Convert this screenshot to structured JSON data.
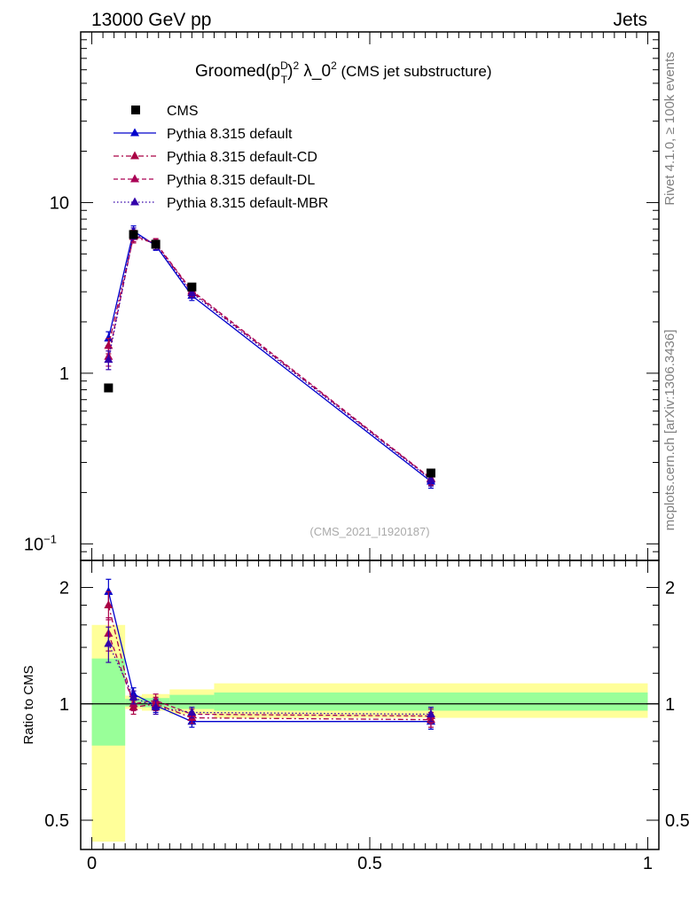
{
  "header": {
    "energy_label": "13000 GeV pp",
    "category_label": "Jets"
  },
  "title_parts": {
    "prefix": "Groomed(p",
    "sup_d": "D",
    "sub_t": "T",
    "close": ")",
    "sup_2": "2",
    "mid": " λ_0",
    "sup_2b": "2",
    "suffix": " (CMS jet substructure)"
  },
  "side_labels": {
    "rivet": "Rivet 4.1.0, ≥ 100k events",
    "mcplots": "mcplots.cern.ch [arXiv:1306.3436]"
  },
  "watermark": "(CMS_2021_I1920187)",
  "colors": {
    "cms": "#000000",
    "default": "#0000cc",
    "default_cd": "#aa0044",
    "default_dl": "#aa0055",
    "default_mbr": "#3300aa",
    "band_yellow": "#ffff99",
    "band_green": "#99ff99"
  },
  "chart_data": [
    {
      "type": "line",
      "panel": "main",
      "title": "Groomed(pT^D)^2 λ_0^2 (CMS jet substructure)",
      "xlabel": "",
      "ylabel": "",
      "yscale": "log",
      "xlim": [
        -0.02,
        1.02
      ],
      "ylim": [
        0.08,
        100
      ],
      "yticks": [
        {
          "value": 10,
          "label": "10"
        },
        {
          "value": 1,
          "label": "1"
        },
        {
          "value": 0.1,
          "label": "10",
          "sup": "−1"
        }
      ],
      "legend": [
        "CMS",
        "Pythia 8.315 default",
        "Pythia 8.315 default-CD",
        "Pythia 8.315 default-DL",
        "Pythia 8.315 default-MBR"
      ],
      "legend_position": "top-left",
      "x": [
        0.03,
        0.075,
        0.115,
        0.18,
        0.61
      ],
      "cms": [
        0.82,
        6.5,
        5.7,
        3.2,
        0.26
      ],
      "series": [
        {
          "name": "Pythia 8.315 default",
          "style": "solid",
          "values": [
            1.6,
            6.8,
            5.6,
            2.85,
            0.232
          ],
          "errors": [
            0.15,
            0.5,
            0.35,
            0.18,
            0.02
          ]
        },
        {
          "name": "Pythia 8.315 default-CD",
          "style": "dashdot",
          "values": [
            1.45,
            6.3,
            5.75,
            3.0,
            0.24
          ],
          "errors": [
            0.15,
            0.5,
            0.35,
            0.18,
            0.02
          ]
        },
        {
          "name": "Pythia 8.315 default-DL",
          "style": "dashed",
          "values": [
            1.25,
            6.4,
            5.8,
            3.05,
            0.242
          ],
          "errors": [
            0.15,
            0.5,
            0.35,
            0.18,
            0.02
          ]
        },
        {
          "name": "Pythia 8.315 default-MBR",
          "style": "dotted",
          "values": [
            1.2,
            6.6,
            5.65,
            2.95,
            0.238
          ],
          "errors": [
            0.15,
            0.5,
            0.35,
            0.18,
            0.02
          ]
        }
      ]
    },
    {
      "type": "line",
      "panel": "ratio",
      "xlabel": "",
      "ylabel": "Ratio to CMS",
      "yscale": "log",
      "xlim": [
        -0.02,
        1.02
      ],
      "ylim": [
        0.42,
        2.35
      ],
      "yticks": [
        {
          "value": 2,
          "label": "2"
        },
        {
          "value": 1,
          "label": "1"
        },
        {
          "value": 0.5,
          "label": "0.5"
        }
      ],
      "xticks": [
        {
          "value": 0,
          "label": "0"
        },
        {
          "value": 0.5,
          "label": "0.5"
        },
        {
          "value": 1,
          "label": "1"
        }
      ],
      "x": [
        0.03,
        0.075,
        0.115,
        0.18,
        0.61
      ],
      "bands": [
        {
          "x0": 0.0,
          "x1": 0.06,
          "yellow": [
            0.44,
            1.6
          ],
          "green": [
            0.78,
            1.31
          ]
        },
        {
          "x0": 0.06,
          "x1": 0.09,
          "yellow": [
            0.97,
            1.05
          ],
          "green": [
            0.985,
            1.03
          ]
        },
        {
          "x0": 0.09,
          "x1": 0.14,
          "yellow": [
            0.96,
            1.06
          ],
          "green": [
            0.98,
            1.035
          ]
        },
        {
          "x0": 0.14,
          "x1": 0.22,
          "yellow": [
            0.94,
            1.09
          ],
          "green": [
            0.97,
            1.055
          ]
        },
        {
          "x0": 0.22,
          "x1": 1.0,
          "yellow": [
            0.92,
            1.13
          ],
          "green": [
            0.96,
            1.07
          ]
        }
      ],
      "series": [
        {
          "name": "Pythia 8.315 default",
          "style": "solid",
          "values": [
            1.95,
            1.06,
            0.99,
            0.9,
            0.9
          ],
          "errors": [
            0.15,
            0.04,
            0.04,
            0.03,
            0.04
          ]
        },
        {
          "name": "Pythia 8.315 default-CD",
          "style": "dashdot",
          "values": [
            1.8,
            0.98,
            1.0,
            0.92,
            0.91
          ],
          "errors": [
            0.15,
            0.04,
            0.04,
            0.03,
            0.04
          ]
        },
        {
          "name": "Pythia 8.315 default-DL",
          "style": "dashed",
          "values": [
            1.52,
            1.0,
            1.02,
            0.94,
            0.93
          ],
          "errors": [
            0.15,
            0.04,
            0.04,
            0.03,
            0.04
          ]
        },
        {
          "name": "Pythia 8.315 default-MBR",
          "style": "dotted",
          "values": [
            1.43,
            1.04,
            0.98,
            0.95,
            0.94
          ],
          "errors": [
            0.15,
            0.04,
            0.04,
            0.03,
            0.04
          ]
        }
      ]
    }
  ]
}
